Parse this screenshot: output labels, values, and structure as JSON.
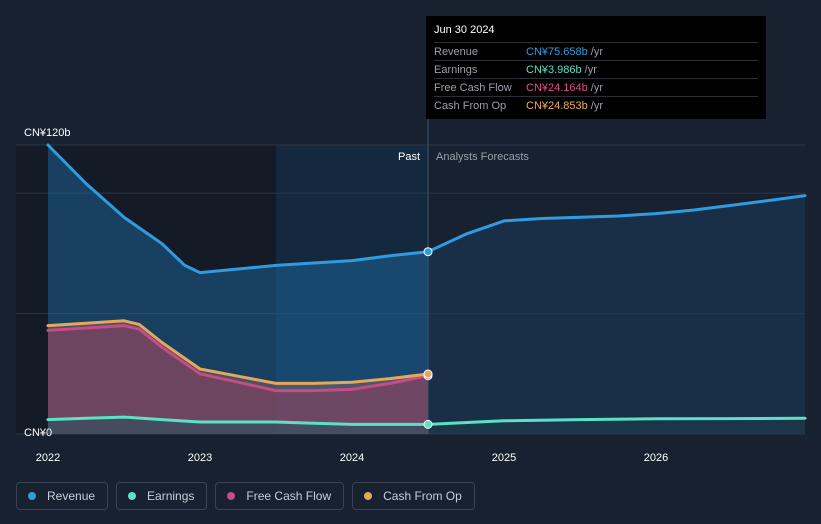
{
  "tooltip": {
    "date": "Jun 30 2024",
    "rows": [
      {
        "label": "Revenue",
        "value": "CN¥75.658b",
        "unit": "/yr",
        "color": "#2f9be0"
      },
      {
        "label": "Earnings",
        "value": "CN¥3.986b",
        "unit": "/yr",
        "color": "#5ce0c6"
      },
      {
        "label": "Free Cash Flow",
        "value": "CN¥24.164b",
        "unit": "/yr",
        "color": "#e0508a"
      },
      {
        "label": "Cash From Op",
        "value": "CN¥24.853b",
        "unit": "/yr",
        "color": "#efad5a"
      }
    ]
  },
  "legend": [
    {
      "label": "Revenue",
      "color": "#2f9be0"
    },
    {
      "label": "Earnings",
      "color": "#5ce0c6"
    },
    {
      "label": "Free Cash Flow",
      "color": "#c74b86"
    },
    {
      "label": "Cash From Op",
      "color": "#e6a75a"
    }
  ],
  "chart_data": {
    "type": "area",
    "past_label": "Past",
    "forecast_label": "Analysts Forecasts",
    "divider_x": 2024.5,
    "ylim": [
      0,
      120
    ],
    "xlim": [
      2021.9,
      2026.98
    ],
    "y_tick_labels": [
      {
        "value": 120,
        "label": "CN¥120b"
      },
      {
        "value": 0,
        "label": "CN¥0"
      }
    ],
    "x_ticks": [
      {
        "value": 2022,
        "label": "2022"
      },
      {
        "value": 2023,
        "label": "2023"
      },
      {
        "value": 2024,
        "label": "2024"
      },
      {
        "value": 2025,
        "label": "2025"
      },
      {
        "value": 2026,
        "label": "2026"
      }
    ],
    "series": [
      {
        "name": "Revenue",
        "color": "#2f9be0",
        "past": [
          [
            2022.0,
            120
          ],
          [
            2022.25,
            104
          ],
          [
            2022.5,
            90
          ],
          [
            2022.75,
            79
          ],
          [
            2022.9,
            70
          ],
          [
            2023.0,
            67
          ],
          [
            2023.25,
            68.5
          ],
          [
            2023.5,
            70
          ],
          [
            2023.75,
            71
          ],
          [
            2024.0,
            72
          ],
          [
            2024.25,
            74
          ],
          [
            2024.5,
            75.7
          ]
        ],
        "forecast": [
          [
            2024.5,
            75.7
          ],
          [
            2024.75,
            83
          ],
          [
            2025.0,
            88.5
          ],
          [
            2025.25,
            89.5
          ],
          [
            2025.5,
            90
          ],
          [
            2025.75,
            90.5
          ],
          [
            2026.0,
            91.5
          ],
          [
            2026.25,
            93
          ],
          [
            2026.5,
            95
          ],
          [
            2026.75,
            97
          ],
          [
            2026.98,
            99
          ]
        ]
      },
      {
        "name": "Cash From Op",
        "color": "#e6a75a",
        "past": [
          [
            2022.0,
            45
          ],
          [
            2022.25,
            46
          ],
          [
            2022.5,
            47
          ],
          [
            2022.6,
            45.5
          ],
          [
            2022.75,
            38
          ],
          [
            2023.0,
            27
          ],
          [
            2023.25,
            24
          ],
          [
            2023.5,
            21
          ],
          [
            2023.75,
            21
          ],
          [
            2024.0,
            21.5
          ],
          [
            2024.25,
            23
          ],
          [
            2024.5,
            24.9
          ]
        ],
        "forecast": []
      },
      {
        "name": "Free Cash Flow",
        "color": "#c74b86",
        "past": [
          [
            2022.0,
            43
          ],
          [
            2022.25,
            44
          ],
          [
            2022.5,
            45
          ],
          [
            2022.6,
            43.5
          ],
          [
            2022.75,
            36
          ],
          [
            2023.0,
            25
          ],
          [
            2023.25,
            21.5
          ],
          [
            2023.5,
            18
          ],
          [
            2023.75,
            18
          ],
          [
            2024.0,
            18.5
          ],
          [
            2024.25,
            21
          ],
          [
            2024.5,
            24.2
          ]
        ],
        "forecast": []
      },
      {
        "name": "Earnings",
        "color": "#5ce0c6",
        "past": [
          [
            2022.0,
            6
          ],
          [
            2022.25,
            6.5
          ],
          [
            2022.5,
            7
          ],
          [
            2022.75,
            6
          ],
          [
            2023.0,
            5
          ],
          [
            2023.25,
            5
          ],
          [
            2023.5,
            5
          ],
          [
            2023.75,
            4.5
          ],
          [
            2024.0,
            4
          ],
          [
            2024.25,
            4
          ],
          [
            2024.5,
            4
          ]
        ],
        "forecast": [
          [
            2024.5,
            4
          ],
          [
            2025.0,
            5.5
          ],
          [
            2025.5,
            6
          ],
          [
            2026.0,
            6.3
          ],
          [
            2026.5,
            6.4
          ],
          [
            2026.98,
            6.5
          ]
        ]
      }
    ],
    "grid": true
  }
}
